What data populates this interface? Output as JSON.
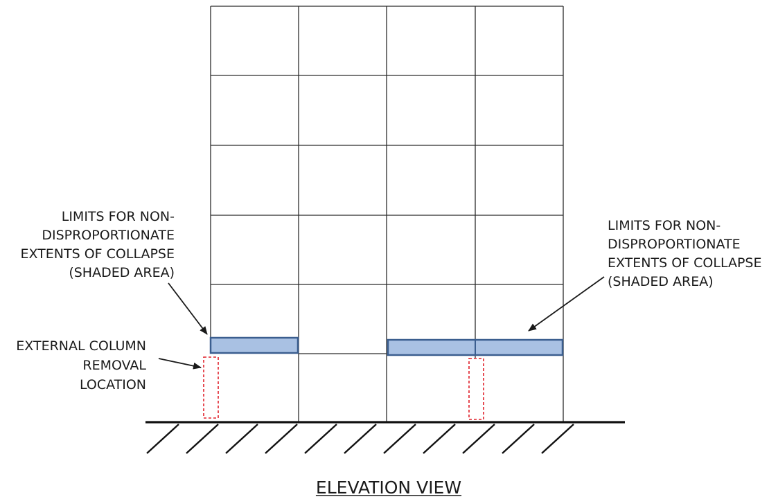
{
  "title": "ELEVATION VIEW",
  "left_note": {
    "lines": [
      "LIMITS FOR NON-",
      "DISPROPORTIONATE",
      "EXTENTS OF COLLAPSE",
      "(SHADED AREA)"
    ]
  },
  "right_note": {
    "lines": [
      "LIMITS FOR NON-",
      "DISPROPORTIONATE",
      "EXTENTS OF COLLAPSE",
      "(SHADED AREA)"
    ]
  },
  "column_note": {
    "lines": [
      "EXTERNAL COLUMN",
      "REMOVAL",
      "LOCATION"
    ]
  },
  "colors": {
    "frame": "#2b2b2b",
    "shaded_fill": "#a9c1e3",
    "shaded_stroke": "#3b5e8f",
    "removal_dash": "#e0202a",
    "ink": "#1a1a1a"
  }
}
